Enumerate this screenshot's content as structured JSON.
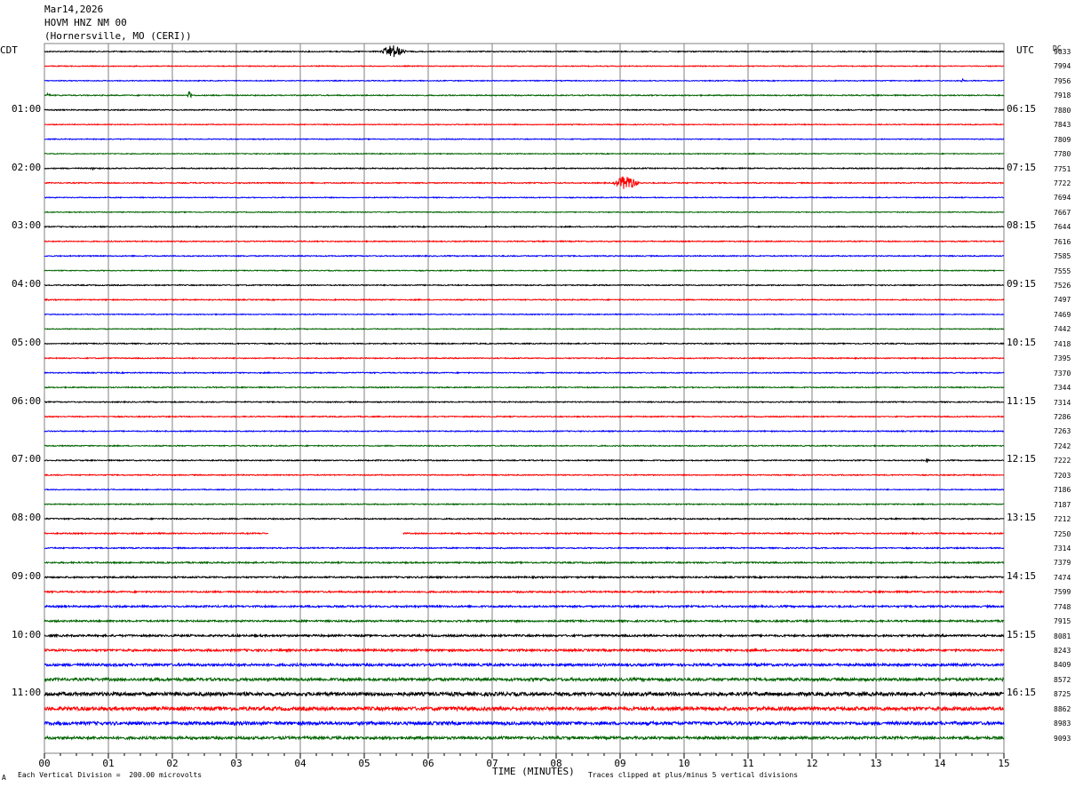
{
  "header": {
    "date": "Mar14,2026",
    "station": "HOVM HNZ NM 00",
    "location": "(Hornersville, MO (CERI))"
  },
  "left_timezone": "CDT",
  "right_timezone": "UTC",
  "dc_label": "DC",
  "footer": {
    "scale_text": "Each Vertical Division =  200.00 microvolts",
    "clip_text": "Traces clipped at plus/minus 5 vertical divisions",
    "corner_mark": "A"
  },
  "colors": {
    "cycle": [
      "#000000",
      "#ff0000",
      "#0000ff",
      "#006400"
    ],
    "grid": "#808080"
  },
  "chart_data": {
    "type": "line",
    "title": "HOVM HNZ NM 00",
    "xlabel": "TIME (MINUTES)",
    "xlim": [
      0,
      15
    ],
    "x_ticks": [
      "00",
      "01",
      "02",
      "03",
      "04",
      "05",
      "06",
      "07",
      "08",
      "09",
      "10",
      "11",
      "12",
      "13",
      "14",
      "15"
    ],
    "left_hour_labels": [
      "01:00",
      "02:00",
      "03:00",
      "04:00",
      "05:00",
      "06:00",
      "07:00",
      "08:00",
      "09:00",
      "10:00",
      "11:00"
    ],
    "right_hour_labels": [
      "06:15",
      "07:15",
      "08:15",
      "09:15",
      "10:15",
      "11:15",
      "12:15",
      "13:15",
      "14:15",
      "15:15",
      "16:15"
    ],
    "trace_dc_offsets": [
      9033,
      7994,
      7956,
      7918,
      7880,
      7843,
      7809,
      7780,
      7751,
      7722,
      7694,
      7667,
      7644,
      7616,
      7585,
      7555,
      7526,
      7497,
      7469,
      7442,
      7418,
      7395,
      7370,
      7344,
      7314,
      7286,
      7263,
      7242,
      7222,
      7203,
      7186,
      7187,
      7212,
      7250,
      7314,
      7379,
      7474,
      7599,
      7748,
      7915,
      8081,
      8243,
      8409,
      8572,
      8725,
      8862,
      8983,
      9093
    ],
    "trace_noise_level": [
      0.6,
      0.5,
      0.5,
      0.6,
      0.6,
      0.5,
      0.5,
      0.5,
      0.6,
      0.6,
      0.5,
      0.5,
      0.6,
      0.6,
      0.6,
      0.5,
      0.6,
      0.6,
      0.5,
      0.5,
      0.6,
      0.6,
      0.6,
      0.6,
      0.6,
      0.6,
      0.6,
      0.6,
      0.6,
      0.6,
      0.5,
      0.6,
      0.7,
      0.7,
      0.7,
      0.8,
      0.9,
      0.9,
      1.0,
      1.0,
      1.1,
      1.2,
      1.4,
      1.6,
      2.0,
      2.0,
      1.8,
      1.5
    ],
    "trace_gap": {
      "trace": 33,
      "from_minute": 3.5,
      "to_minute": 5.6
    },
    "events": [
      {
        "trace": 0,
        "minute": 5.45,
        "amplitude": 8
      },
      {
        "trace": 3,
        "minute": 0.07,
        "amplitude": 4
      },
      {
        "trace": 3,
        "minute": 2.27,
        "amplitude": 6
      },
      {
        "trace": 2,
        "minute": 14.35,
        "amplitude": 2
      },
      {
        "trace": 8,
        "minute": 0.75,
        "amplitude": 3
      },
      {
        "trace": 9,
        "minute": 9.1,
        "amplitude": 10
      },
      {
        "trace": 28,
        "minute": 13.8,
        "amplitude": 3
      }
    ]
  }
}
